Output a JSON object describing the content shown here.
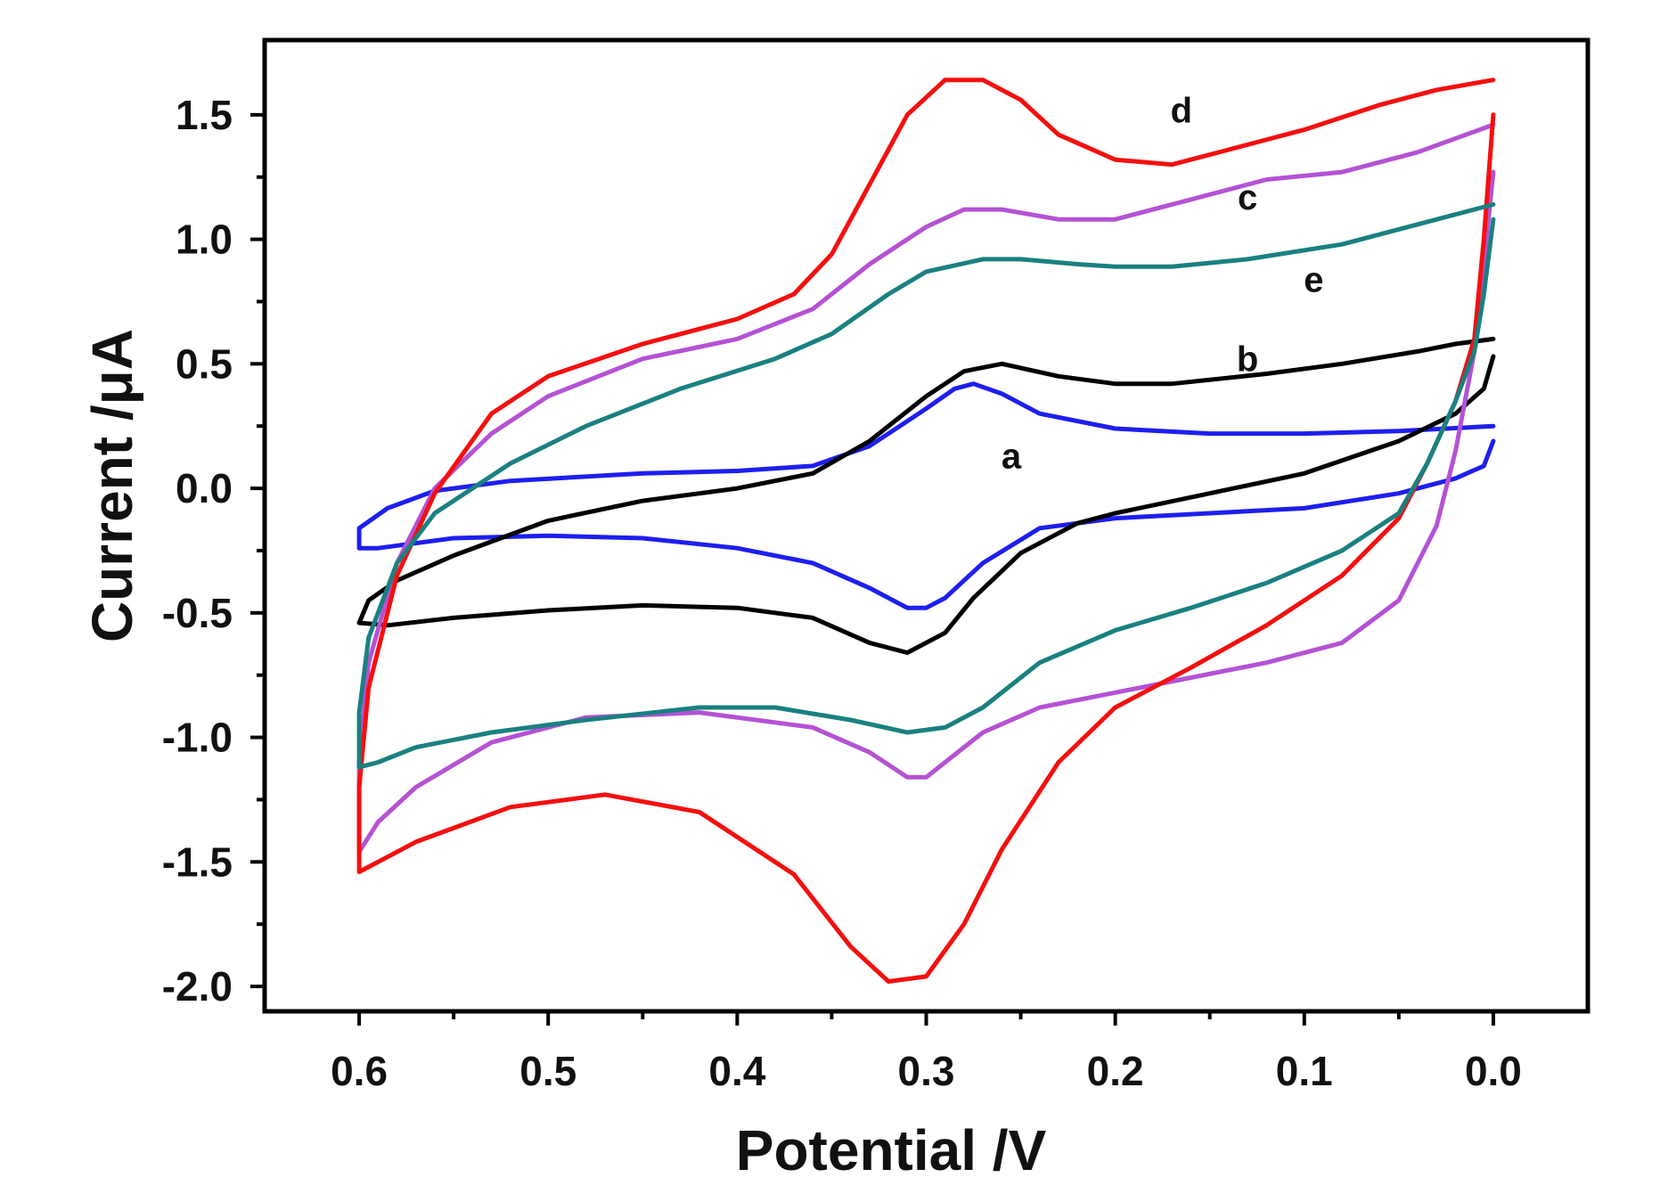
{
  "chart_data": {
    "type": "line",
    "xlabel": "Potential /V",
    "ylabel": "Current /μA",
    "xlim": [
      0.65,
      -0.05
    ],
    "ylim": [
      -2.1,
      1.8
    ],
    "x_axis_reversed": true,
    "grid": false,
    "legend": "none",
    "x_ticks": [
      0.6,
      0.5,
      0.4,
      0.3,
      0.2,
      0.1,
      0.0
    ],
    "x_tick_labels": [
      "0.6",
      "0.5",
      "0.4",
      "0.3",
      "0.2",
      "0.1",
      "0.0"
    ],
    "y_ticks": [
      1.5,
      1.0,
      0.5,
      0.0,
      -0.5,
      -1.0,
      -1.5,
      -2.0
    ],
    "y_tick_labels": [
      "1.5",
      "1.0",
      "0.5",
      "0.0",
      "-0.5",
      "-1.0",
      "-1.5",
      "-2.0"
    ],
    "series": [
      {
        "name": "a",
        "color": "#1e1ef0",
        "label_at": [
          0.255,
          0.13
        ],
        "points": [
          [
            0.0,
            0.19
          ],
          [
            0.005,
            0.09
          ],
          [
            0.02,
            0.04
          ],
          [
            0.05,
            -0.02
          ],
          [
            0.1,
            -0.08
          ],
          [
            0.15,
            -0.1
          ],
          [
            0.2,
            -0.12
          ],
          [
            0.24,
            -0.16
          ],
          [
            0.27,
            -0.3
          ],
          [
            0.29,
            -0.44
          ],
          [
            0.3,
            -0.48
          ],
          [
            0.31,
            -0.48
          ],
          [
            0.33,
            -0.4
          ],
          [
            0.36,
            -0.3
          ],
          [
            0.4,
            -0.24
          ],
          [
            0.45,
            -0.2
          ],
          [
            0.5,
            -0.19
          ],
          [
            0.55,
            -0.2
          ],
          [
            0.59,
            -0.24
          ],
          [
            0.6,
            -0.24
          ],
          [
            0.6,
            -0.16
          ],
          [
            0.585,
            -0.08
          ],
          [
            0.56,
            -0.01
          ],
          [
            0.52,
            0.03
          ],
          [
            0.45,
            0.06
          ],
          [
            0.4,
            0.07
          ],
          [
            0.36,
            0.09
          ],
          [
            0.33,
            0.17
          ],
          [
            0.3,
            0.32
          ],
          [
            0.285,
            0.4
          ],
          [
            0.275,
            0.42
          ],
          [
            0.26,
            0.38
          ],
          [
            0.24,
            0.3
          ],
          [
            0.2,
            0.24
          ],
          [
            0.15,
            0.22
          ],
          [
            0.1,
            0.22
          ],
          [
            0.05,
            0.23
          ],
          [
            0.0,
            0.25
          ]
        ]
      },
      {
        "name": "b",
        "color": "#000000",
        "label_at": [
          0.13,
          0.52
        ],
        "points": [
          [
            0.0,
            0.53
          ],
          [
            0.005,
            0.4
          ],
          [
            0.02,
            0.3
          ],
          [
            0.05,
            0.19
          ],
          [
            0.1,
            0.06
          ],
          [
            0.15,
            -0.02
          ],
          [
            0.2,
            -0.1
          ],
          [
            0.22,
            -0.14
          ],
          [
            0.25,
            -0.26
          ],
          [
            0.275,
            -0.44
          ],
          [
            0.29,
            -0.58
          ],
          [
            0.31,
            -0.66
          ],
          [
            0.33,
            -0.62
          ],
          [
            0.36,
            -0.52
          ],
          [
            0.4,
            -0.48
          ],
          [
            0.45,
            -0.47
          ],
          [
            0.5,
            -0.49
          ],
          [
            0.55,
            -0.52
          ],
          [
            0.585,
            -0.55
          ],
          [
            0.6,
            -0.54
          ],
          [
            0.595,
            -0.45
          ],
          [
            0.58,
            -0.37
          ],
          [
            0.55,
            -0.27
          ],
          [
            0.5,
            -0.13
          ],
          [
            0.45,
            -0.05
          ],
          [
            0.4,
            0.0
          ],
          [
            0.36,
            0.06
          ],
          [
            0.33,
            0.19
          ],
          [
            0.3,
            0.37
          ],
          [
            0.28,
            0.47
          ],
          [
            0.26,
            0.5
          ],
          [
            0.23,
            0.45
          ],
          [
            0.2,
            0.42
          ],
          [
            0.17,
            0.42
          ],
          [
            0.12,
            0.46
          ],
          [
            0.08,
            0.5
          ],
          [
            0.04,
            0.55
          ],
          [
            0.02,
            0.58
          ],
          [
            0.0,
            0.6
          ]
        ]
      },
      {
        "name": "c",
        "color": "#b452d4",
        "label_at": [
          0.13,
          1.17
        ],
        "points": [
          [
            0.0,
            1.27
          ],
          [
            0.005,
            0.9
          ],
          [
            0.01,
            0.55
          ],
          [
            0.02,
            0.15
          ],
          [
            0.03,
            -0.15
          ],
          [
            0.05,
            -0.45
          ],
          [
            0.08,
            -0.62
          ],
          [
            0.12,
            -0.7
          ],
          [
            0.16,
            -0.76
          ],
          [
            0.2,
            -0.82
          ],
          [
            0.24,
            -0.88
          ],
          [
            0.27,
            -0.98
          ],
          [
            0.29,
            -1.1
          ],
          [
            0.3,
            -1.16
          ],
          [
            0.31,
            -1.16
          ],
          [
            0.33,
            -1.06
          ],
          [
            0.36,
            -0.96
          ],
          [
            0.42,
            -0.9
          ],
          [
            0.48,
            -0.92
          ],
          [
            0.53,
            -1.02
          ],
          [
            0.57,
            -1.2
          ],
          [
            0.59,
            -1.34
          ],
          [
            0.6,
            -1.46
          ],
          [
            0.6,
            -1.1
          ],
          [
            0.595,
            -0.7
          ],
          [
            0.58,
            -0.3
          ],
          [
            0.56,
            0.0
          ],
          [
            0.53,
            0.22
          ],
          [
            0.5,
            0.37
          ],
          [
            0.45,
            0.52
          ],
          [
            0.4,
            0.6
          ],
          [
            0.36,
            0.72
          ],
          [
            0.33,
            0.9
          ],
          [
            0.3,
            1.05
          ],
          [
            0.28,
            1.12
          ],
          [
            0.26,
            1.12
          ],
          [
            0.23,
            1.08
          ],
          [
            0.2,
            1.08
          ],
          [
            0.16,
            1.16
          ],
          [
            0.12,
            1.24
          ],
          [
            0.08,
            1.27
          ],
          [
            0.04,
            1.35
          ],
          [
            0.0,
            1.46
          ]
        ]
      },
      {
        "name": "d",
        "color": "#f50f0f",
        "label_at": [
          0.165,
          1.52
        ],
        "points": [
          [
            0.0,
            1.5
          ],
          [
            0.005,
            1.0
          ],
          [
            0.01,
            0.6
          ],
          [
            0.02,
            0.35
          ],
          [
            0.035,
            0.1
          ],
          [
            0.05,
            -0.12
          ],
          [
            0.08,
            -0.35
          ],
          [
            0.12,
            -0.55
          ],
          [
            0.16,
            -0.72
          ],
          [
            0.2,
            -0.88
          ],
          [
            0.23,
            -1.1
          ],
          [
            0.26,
            -1.45
          ],
          [
            0.28,
            -1.75
          ],
          [
            0.3,
            -1.96
          ],
          [
            0.32,
            -1.98
          ],
          [
            0.34,
            -1.84
          ],
          [
            0.37,
            -1.55
          ],
          [
            0.42,
            -1.3
          ],
          [
            0.47,
            -1.23
          ],
          [
            0.52,
            -1.28
          ],
          [
            0.57,
            -1.42
          ],
          [
            0.6,
            -1.54
          ],
          [
            0.6,
            -1.2
          ],
          [
            0.595,
            -0.8
          ],
          [
            0.58,
            -0.35
          ],
          [
            0.56,
            -0.02
          ],
          [
            0.53,
            0.3
          ],
          [
            0.5,
            0.45
          ],
          [
            0.45,
            0.58
          ],
          [
            0.4,
            0.68
          ],
          [
            0.37,
            0.78
          ],
          [
            0.35,
            0.94
          ],
          [
            0.33,
            1.22
          ],
          [
            0.31,
            1.5
          ],
          [
            0.29,
            1.64
          ],
          [
            0.27,
            1.64
          ],
          [
            0.25,
            1.56
          ],
          [
            0.23,
            1.42
          ],
          [
            0.2,
            1.32
          ],
          [
            0.17,
            1.3
          ],
          [
            0.14,
            1.36
          ],
          [
            0.1,
            1.44
          ],
          [
            0.06,
            1.54
          ],
          [
            0.03,
            1.6
          ],
          [
            0.0,
            1.64
          ]
        ]
      },
      {
        "name": "e",
        "color": "#1a8080",
        "label_at": [
          0.095,
          0.84
        ],
        "points": [
          [
            0.0,
            1.08
          ],
          [
            0.005,
            0.78
          ],
          [
            0.01,
            0.55
          ],
          [
            0.02,
            0.35
          ],
          [
            0.035,
            0.1
          ],
          [
            0.05,
            -0.1
          ],
          [
            0.08,
            -0.25
          ],
          [
            0.12,
            -0.38
          ],
          [
            0.16,
            -0.48
          ],
          [
            0.2,
            -0.57
          ],
          [
            0.24,
            -0.7
          ],
          [
            0.27,
            -0.88
          ],
          [
            0.29,
            -0.96
          ],
          [
            0.31,
            -0.98
          ],
          [
            0.34,
            -0.93
          ],
          [
            0.38,
            -0.88
          ],
          [
            0.42,
            -0.88
          ],
          [
            0.48,
            -0.93
          ],
          [
            0.53,
            -0.98
          ],
          [
            0.57,
            -1.04
          ],
          [
            0.59,
            -1.1
          ],
          [
            0.6,
            -1.12
          ],
          [
            0.6,
            -0.9
          ],
          [
            0.595,
            -0.6
          ],
          [
            0.58,
            -0.3
          ],
          [
            0.56,
            -0.1
          ],
          [
            0.52,
            0.1
          ],
          [
            0.48,
            0.25
          ],
          [
            0.43,
            0.4
          ],
          [
            0.38,
            0.52
          ],
          [
            0.35,
            0.62
          ],
          [
            0.32,
            0.78
          ],
          [
            0.3,
            0.87
          ],
          [
            0.27,
            0.92
          ],
          [
            0.25,
            0.92
          ],
          [
            0.22,
            0.9
          ],
          [
            0.2,
            0.89
          ],
          [
            0.17,
            0.89
          ],
          [
            0.13,
            0.92
          ],
          [
            0.08,
            0.98
          ],
          [
            0.04,
            1.06
          ],
          [
            0.0,
            1.14
          ]
        ]
      }
    ]
  }
}
